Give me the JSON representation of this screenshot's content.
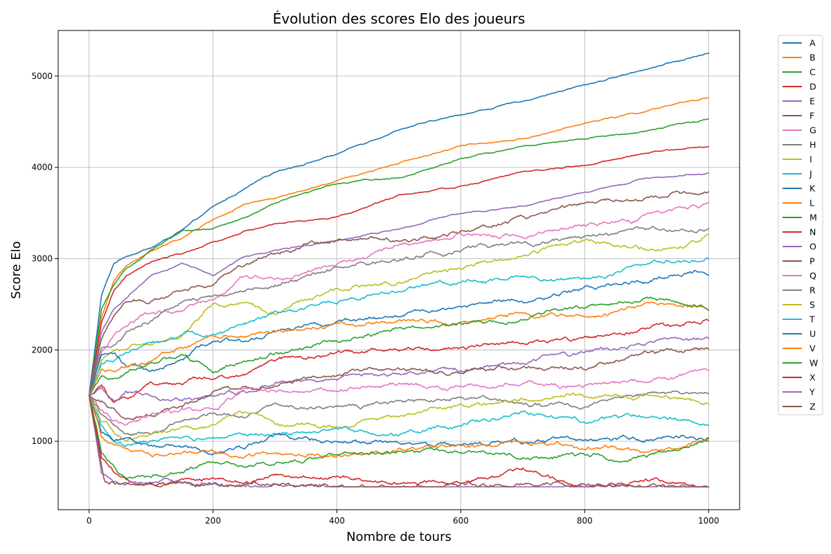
{
  "chart_data": {
    "type": "line",
    "title": "Évolution des scores Elo des joueurs",
    "xlabel": "Nombre de tours",
    "ylabel": "Score Elo",
    "xlim": [
      -50,
      1050
    ],
    "ylim": [
      250,
      5500
    ],
    "xticks": [
      0,
      200,
      400,
      600,
      800,
      1000
    ],
    "yticks": [
      1000,
      2000,
      3000,
      4000,
      5000
    ],
    "grid": true,
    "legend": "outside-right",
    "series": [
      {
        "name": "A",
        "color": "#1f77b4",
        "x": [
          0,
          20,
          40,
          60,
          100,
          150,
          200,
          250,
          300,
          400,
          500,
          600,
          700,
          800,
          900,
          1000
        ],
        "y": [
          1500,
          2600,
          2950,
          3030,
          3120,
          3310,
          3560,
          3760,
          3960,
          4150,
          4410,
          4570,
          4720,
          4900,
          5080,
          5260
        ]
      },
      {
        "name": "B",
        "color": "#ff7f0e",
        "x": [
          0,
          20,
          40,
          60,
          100,
          150,
          200,
          250,
          300,
          400,
          500,
          600,
          700,
          800,
          900,
          1000
        ],
        "y": [
          1500,
          2350,
          2750,
          2920,
          3070,
          3220,
          3420,
          3580,
          3660,
          3850,
          4050,
          4230,
          4320,
          4480,
          4620,
          4770
        ]
      },
      {
        "name": "C",
        "color": "#2ca02c",
        "x": [
          0,
          20,
          40,
          60,
          100,
          150,
          200,
          250,
          300,
          400,
          500,
          600,
          700,
          800,
          900,
          1000
        ],
        "y": [
          1500,
          2450,
          2700,
          2880,
          3100,
          3300,
          3330,
          3450,
          3620,
          3820,
          3880,
          4100,
          4230,
          4300,
          4400,
          4520
        ]
      },
      {
        "name": "D",
        "color": "#d62728",
        "x": [
          0,
          20,
          40,
          60,
          100,
          150,
          200,
          250,
          300,
          400,
          500,
          600,
          700,
          800,
          900,
          1000
        ],
        "y": [
          1500,
          2300,
          2650,
          2800,
          2960,
          3050,
          3170,
          3300,
          3380,
          3460,
          3700,
          3800,
          3950,
          4020,
          4150,
          4220
        ]
      },
      {
        "name": "E",
        "color": "#9467bd",
        "x": [
          0,
          20,
          40,
          60,
          100,
          150,
          200,
          250,
          300,
          400,
          500,
          600,
          700,
          800,
          900,
          1000
        ],
        "y": [
          1500,
          2200,
          2450,
          2560,
          2800,
          2950,
          2820,
          3030,
          3100,
          3220,
          3340,
          3510,
          3590,
          3730,
          3880,
          3950
        ]
      },
      {
        "name": "F",
        "color": "#8c564b",
        "x": [
          0,
          20,
          40,
          60,
          100,
          150,
          200,
          250,
          300,
          400,
          500,
          600,
          700,
          800,
          900,
          1000
        ],
        "y": [
          1500,
          2100,
          2400,
          2550,
          2550,
          2700,
          2790,
          2980,
          3100,
          3250,
          3220,
          3300,
          3450,
          3600,
          3640,
          3710
        ]
      },
      {
        "name": "G",
        "color": "#e377c2",
        "x": [
          0,
          20,
          40,
          60,
          100,
          150,
          200,
          250,
          300,
          400,
          500,
          600,
          700,
          800,
          900,
          1000
        ],
        "y": [
          1500,
          1950,
          2150,
          2250,
          2380,
          2420,
          2560,
          2830,
          2780,
          2920,
          3150,
          3240,
          3260,
          3350,
          3470,
          3590
        ]
      },
      {
        "name": "H",
        "color": "#7f7f7f",
        "x": [
          0,
          20,
          40,
          60,
          100,
          150,
          200,
          250,
          300,
          400,
          500,
          600,
          700,
          800,
          900,
          1000
        ],
        "y": [
          1500,
          2000,
          2050,
          2200,
          2300,
          2520,
          2560,
          2640,
          2720,
          2890,
          2960,
          3080,
          3170,
          3230,
          3310,
          3370
        ]
      },
      {
        "name": "I",
        "color": "#bcbd22",
        "x": [
          0,
          20,
          40,
          60,
          100,
          150,
          200,
          250,
          300,
          400,
          500,
          600,
          700,
          800,
          900,
          1000
        ],
        "y": [
          1500,
          1900,
          2000,
          2050,
          2100,
          2200,
          2550,
          2580,
          2450,
          2690,
          2750,
          2920,
          3050,
          3200,
          3120,
          3260
        ]
      },
      {
        "name": "J",
        "color": "#17becf",
        "x": [
          0,
          20,
          40,
          60,
          100,
          150,
          200,
          250,
          300,
          400,
          500,
          600,
          700,
          800,
          900,
          1000
        ],
        "y": [
          1500,
          1850,
          1900,
          1980,
          2080,
          2200,
          2210,
          2300,
          2440,
          2580,
          2660,
          2780,
          2780,
          2750,
          2960,
          3000
        ]
      },
      {
        "name": "K",
        "color": "#1f77b4",
        "x": [
          0,
          20,
          40,
          60,
          100,
          150,
          200,
          250,
          300,
          400,
          500,
          600,
          700,
          800,
          900,
          1000
        ],
        "y": [
          1500,
          1960,
          1960,
          1850,
          1790,
          1920,
          2120,
          2100,
          2200,
          2290,
          2350,
          2490,
          2550,
          2650,
          2720,
          2880
        ]
      },
      {
        "name": "L",
        "color": "#ff7f0e",
        "x": [
          0,
          20,
          40,
          60,
          100,
          150,
          200,
          250,
          300,
          400,
          500,
          600,
          700,
          800,
          900,
          1000
        ],
        "y": [
          1500,
          1800,
          1750,
          1800,
          1870,
          2000,
          2120,
          2140,
          2200,
          2270,
          2340,
          2280,
          2380,
          2350,
          2510,
          2470
        ]
      },
      {
        "name": "M",
        "color": "#2ca02c",
        "x": [
          0,
          20,
          40,
          60,
          100,
          150,
          200,
          250,
          300,
          400,
          500,
          600,
          700,
          800,
          900,
          1000
        ],
        "y": [
          1500,
          1700,
          1680,
          1760,
          1850,
          1950,
          1720,
          1820,
          1960,
          2100,
          2230,
          2250,
          2330,
          2480,
          2580,
          2450
        ]
      },
      {
        "name": "N",
        "color": "#d62728",
        "x": [
          0,
          20,
          40,
          60,
          100,
          150,
          200,
          250,
          300,
          400,
          500,
          600,
          700,
          800,
          900,
          1000
        ],
        "y": [
          1500,
          1600,
          1420,
          1450,
          1640,
          1600,
          1650,
          1700,
          1880,
          1980,
          2000,
          2030,
          2070,
          2100,
          2230,
          2320
        ]
      },
      {
        "name": "O",
        "color": "#9467bd",
        "x": [
          0,
          20,
          40,
          60,
          100,
          150,
          200,
          250,
          300,
          400,
          500,
          600,
          700,
          800,
          900,
          1000
        ],
        "y": [
          1500,
          1560,
          1420,
          1540,
          1500,
          1450,
          1480,
          1520,
          1620,
          1660,
          1720,
          1800,
          1860,
          1960,
          2080,
          2120
        ]
      },
      {
        "name": "P",
        "color": "#8c564b",
        "x": [
          0,
          20,
          40,
          60,
          100,
          150,
          200,
          250,
          300,
          400,
          500,
          600,
          700,
          800,
          900,
          1000
        ],
        "y": [
          1500,
          1450,
          1350,
          1250,
          1330,
          1420,
          1550,
          1630,
          1600,
          1700,
          1780,
          1740,
          1830,
          1800,
          1960,
          2010
        ]
      },
      {
        "name": "Q",
        "color": "#e377c2",
        "x": [
          0,
          20,
          40,
          60,
          100,
          150,
          200,
          250,
          300,
          400,
          500,
          600,
          700,
          800,
          900,
          1000
        ],
        "y": [
          1500,
          1350,
          1250,
          1200,
          1250,
          1300,
          1330,
          1480,
          1510,
          1520,
          1600,
          1590,
          1640,
          1640,
          1650,
          1750
        ]
      },
      {
        "name": "R",
        "color": "#7f7f7f",
        "x": [
          0,
          20,
          40,
          60,
          100,
          150,
          200,
          250,
          300,
          400,
          500,
          600,
          700,
          800,
          900,
          1000
        ],
        "y": [
          1500,
          1300,
          1200,
          1100,
          1080,
          1200,
          1300,
          1250,
          1420,
          1380,
          1440,
          1480,
          1420,
          1390,
          1500,
          1520
        ]
      },
      {
        "name": "S",
        "color": "#bcbd22",
        "x": [
          0,
          20,
          40,
          60,
          100,
          150,
          200,
          250,
          300,
          400,
          500,
          600,
          700,
          800,
          900,
          1000
        ],
        "y": [
          1500,
          1200,
          1100,
          1000,
          1050,
          1100,
          1150,
          1300,
          1200,
          1150,
          1300,
          1360,
          1420,
          1450,
          1460,
          1390
        ]
      },
      {
        "name": "T",
        "color": "#17becf",
        "x": [
          0,
          20,
          40,
          60,
          100,
          150,
          200,
          250,
          300,
          400,
          500,
          600,
          700,
          800,
          900,
          1000
        ],
        "y": [
          1500,
          1150,
          1000,
          950,
          1000,
          1030,
          1050,
          1100,
          1050,
          1130,
          1080,
          1160,
          1310,
          1220,
          1260,
          1180
        ]
      },
      {
        "name": "U",
        "color": "#1f77b4",
        "x": [
          0,
          20,
          40,
          60,
          100,
          150,
          200,
          250,
          300,
          400,
          500,
          600,
          700,
          800,
          900,
          1000
        ],
        "y": [
          1500,
          1100,
          1000,
          1020,
          940,
          960,
          880,
          920,
          1050,
          1010,
          980,
          970,
          1000,
          980,
          1030,
          1070
        ]
      },
      {
        "name": "V",
        "color": "#ff7f0e",
        "x": [
          0,
          20,
          40,
          60,
          100,
          150,
          200,
          250,
          300,
          400,
          500,
          600,
          700,
          800,
          900,
          1000
        ],
        "y": [
          1500,
          1050,
          950,
          920,
          800,
          820,
          850,
          780,
          850,
          830,
          920,
          980,
          1010,
          940,
          850,
          1020
        ]
      },
      {
        "name": "W",
        "color": "#2ca02c",
        "x": [
          0,
          20,
          40,
          60,
          100,
          150,
          200,
          250,
          300,
          400,
          500,
          600,
          700,
          800,
          900,
          1000
        ],
        "y": [
          1500,
          900,
          750,
          620,
          650,
          700,
          780,
          720,
          790,
          860,
          920,
          910,
          820,
          800,
          810,
          1030
        ]
      },
      {
        "name": "X",
        "color": "#d62728",
        "x": [
          0,
          20,
          40,
          60,
          100,
          150,
          200,
          250,
          300,
          400,
          500,
          600,
          700,
          800,
          900,
          1000
        ],
        "y": [
          1500,
          800,
          650,
          560,
          520,
          560,
          600,
          560,
          640,
          620,
          550,
          520,
          680,
          500,
          620,
          500
        ]
      },
      {
        "name": "Y",
        "color": "#9467bd",
        "x": [
          0,
          20,
          40,
          60,
          100,
          150,
          200,
          250,
          300,
          400,
          500,
          600,
          700,
          800,
          900,
          1000
        ],
        "y": [
          1500,
          650,
          550,
          520,
          560,
          520,
          500,
          500,
          520,
          540,
          500,
          500,
          500,
          500,
          500,
          500
        ]
      },
      {
        "name": "Z",
        "color": "#8c564b",
        "x": [
          0,
          25,
          30,
          60,
          100,
          200,
          300,
          400,
          500,
          600,
          700,
          800,
          900,
          1000
        ],
        "y": [
          1500,
          510,
          500,
          500,
          500,
          500,
          500,
          500,
          500,
          500,
          500,
          500,
          500,
          500
        ]
      }
    ]
  }
}
